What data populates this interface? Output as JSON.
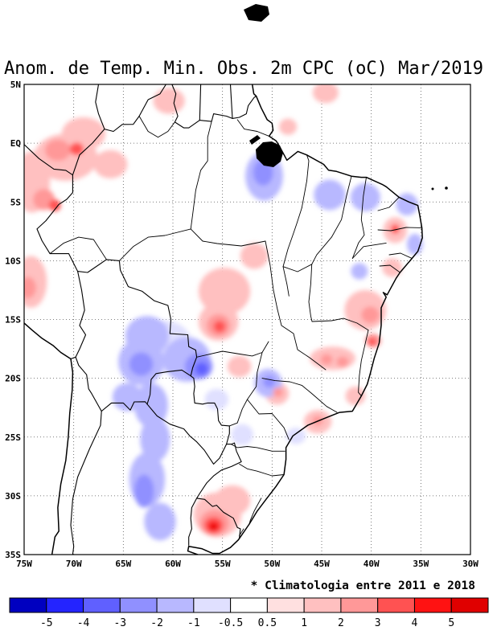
{
  "title": "Anom. de Temp. Min. Obs. 2m CPC (oC) Mar/2019",
  "note": "* Climatologia entre 2011 e 2018",
  "axes": {
    "lat_ticks": [
      {
        "deg": 5,
        "label": "5N"
      },
      {
        "deg": 0,
        "label": "EQ"
      },
      {
        "deg": -5,
        "label": "5S"
      },
      {
        "deg": -10,
        "label": "10S"
      },
      {
        "deg": -15,
        "label": "15S"
      },
      {
        "deg": -20,
        "label": "20S"
      },
      {
        "deg": -25,
        "label": "25S"
      },
      {
        "deg": -30,
        "label": "30S"
      },
      {
        "deg": -35,
        "label": "35S"
      }
    ],
    "lon_ticks": [
      {
        "deg": -75,
        "label": "75W"
      },
      {
        "deg": -70,
        "label": "70W"
      },
      {
        "deg": -65,
        "label": "65W"
      },
      {
        "deg": -60,
        "label": "60W"
      },
      {
        "deg": -55,
        "label": "55W"
      },
      {
        "deg": -50,
        "label": "50W"
      },
      {
        "deg": -45,
        "label": "45W"
      },
      {
        "deg": -40,
        "label": "40W"
      },
      {
        "deg": -35,
        "label": "35W"
      },
      {
        "deg": -30,
        "label": "30W"
      }
    ]
  },
  "colorbar": {
    "tick_labels": [
      "-5",
      "-4",
      "-3",
      "-2",
      "-1",
      "-0.5",
      "0.5",
      "1",
      "2",
      "3",
      "4",
      "5"
    ],
    "colors": [
      "#0000c0",
      "#2424ff",
      "#6060ff",
      "#9090ff",
      "#b8b8ff",
      "#e0e0ff",
      "#ffffff",
      "#ffe0e0",
      "#ffc0c0",
      "#ff9898",
      "#ff5252",
      "#ff1212",
      "#e00000"
    ]
  },
  "chart_data": {
    "type": "heatmap",
    "subtype": "filled-contour-map",
    "title": "Anom. de Temp. Min. Obs. 2m CPC (oC) Mar/2019",
    "units": "oC",
    "lon_range": [
      -75,
      -30
    ],
    "lat_range": [
      -35,
      5
    ],
    "levels": [
      -5,
      -4,
      -3,
      -2,
      -1,
      -0.5,
      0.5,
      1,
      2,
      3,
      4,
      5
    ],
    "anomaly_columns": [
      "lon",
      "lat",
      "rx_deg",
      "ry_deg",
      "anomaly_c"
    ],
    "anomalies": [
      [
        -70.8,
        -1.2,
        3.2,
        2.0,
        1.5
      ],
      [
        -69.0,
        0.8,
        2.2,
        1.4,
        1.5
      ],
      [
        -71.6,
        -0.6,
        1.3,
        0.9,
        2.5
      ],
      [
        -69.7,
        -0.5,
        0.7,
        0.55,
        3.5
      ],
      [
        -66.3,
        -1.8,
        1.7,
        1.2,
        1.5
      ],
      [
        -60.4,
        3.6,
        1.6,
        1.1,
        1.5
      ],
      [
        -44.6,
        4.3,
        1.3,
        0.9,
        1.5
      ],
      [
        -48.4,
        1.4,
        0.9,
        0.7,
        1.5
      ],
      [
        -74.2,
        -3.3,
        1.8,
        2.6,
        1.5
      ],
      [
        -73.0,
        -4.8,
        1.1,
        0.9,
        2.5
      ],
      [
        -71.9,
        -5.3,
        0.6,
        0.5,
        3.5
      ],
      [
        -74.3,
        -11.8,
        1.6,
        2.2,
        1.5
      ],
      [
        -74.6,
        -12.3,
        0.8,
        0.9,
        2.5
      ],
      [
        -51.8,
        -9.6,
        1.4,
        1.1,
        1.5
      ],
      [
        -54.8,
        -12.6,
        2.6,
        2.0,
        1.5
      ],
      [
        -55.4,
        -15.2,
        2.0,
        1.6,
        1.5
      ],
      [
        -55.4,
        -15.5,
        1.2,
        0.95,
        2.5
      ],
      [
        -55.3,
        -15.6,
        0.6,
        0.5,
        3.5
      ],
      [
        -53.3,
        -19.0,
        1.2,
        0.9,
        1.5
      ],
      [
        -49.5,
        -21.3,
        1.2,
        0.95,
        1.5
      ],
      [
        -49.4,
        -21.2,
        0.5,
        0.4,
        2.5
      ],
      [
        -45.4,
        -23.7,
        1.4,
        1.0,
        1.5
      ],
      [
        -45.4,
        -23.6,
        0.55,
        0.4,
        2.5
      ],
      [
        -41.6,
        -21.5,
        1.0,
        0.8,
        1.5
      ],
      [
        -40.6,
        -14.2,
        2.1,
        1.7,
        1.5
      ],
      [
        -40.1,
        -14.6,
        0.9,
        0.7,
        2.5
      ],
      [
        -39.8,
        -16.8,
        0.8,
        0.6,
        2.5
      ],
      [
        -39.9,
        -16.9,
        0.4,
        0.35,
        3.5
      ],
      [
        -43.9,
        -18.3,
        2.3,
        1.0,
        1.5
      ],
      [
        -44.5,
        -18.4,
        0.6,
        0.45,
        2.5
      ],
      [
        -42.9,
        -18.6,
        0.6,
        0.45,
        2.5
      ],
      [
        -37.6,
        -7.4,
        1.2,
        1.1,
        1.5
      ],
      [
        -37.6,
        -7.3,
        0.45,
        0.4,
        3.5
      ],
      [
        -37.9,
        -10.6,
        1.0,
        0.8,
        1.5
      ],
      [
        -55.5,
        -31.6,
        2.4,
        1.9,
        1.5
      ],
      [
        -54.0,
        -30.4,
        1.8,
        1.3,
        1.5
      ],
      [
        -55.8,
        -32.3,
        1.5,
        1.1,
        2.5
      ],
      [
        -55.9,
        -32.5,
        0.95,
        0.7,
        3.5
      ],
      [
        -55.9,
        -32.6,
        0.55,
        0.42,
        4.5
      ],
      [
        -55.9,
        -32.65,
        0.3,
        0.22,
        5.5
      ],
      [
        -50.8,
        -2.8,
        1.9,
        2.1,
        -1.5
      ],
      [
        -50.9,
        -2.5,
        1.0,
        1.1,
        -2.5
      ],
      [
        -44.2,
        -4.4,
        1.6,
        1.3,
        -1.5
      ],
      [
        -40.6,
        -4.6,
        1.5,
        1.2,
        -1.5
      ],
      [
        -36.4,
        -5.2,
        1.1,
        0.95,
        -1.5
      ],
      [
        -35.6,
        -8.6,
        0.8,
        0.9,
        -1.5
      ],
      [
        -41.2,
        -10.9,
        0.85,
        0.7,
        -1.5
      ],
      [
        -60.8,
        -17.3,
        2.8,
        2.2,
        -0.75
      ],
      [
        -62.6,
        -16.4,
        2.2,
        1.7,
        -1.5
      ],
      [
        -63.2,
        -18.6,
        2.3,
        2.0,
        -1.5
      ],
      [
        -63.2,
        -18.8,
        1.2,
        1.0,
        -2.5
      ],
      [
        -58.6,
        -18.4,
        2.4,
        1.9,
        -1.5
      ],
      [
        -57.4,
        -19.0,
        1.4,
        1.1,
        -2.5
      ],
      [
        -57.1,
        -19.2,
        0.65,
        0.55,
        -3.5
      ],
      [
        -64.6,
        -21.6,
        1.5,
        1.2,
        -1.5
      ],
      [
        -62.2,
        -22.3,
        1.7,
        1.9,
        -1.5
      ],
      [
        -61.8,
        -25.2,
        1.5,
        1.9,
        -1.5
      ],
      [
        -62.6,
        -28.6,
        1.8,
        2.3,
        -1.5
      ],
      [
        -62.9,
        -29.6,
        1.0,
        1.4,
        -2.5
      ],
      [
        -61.3,
        -32.2,
        1.6,
        1.6,
        -1.5
      ],
      [
        -50.4,
        -20.4,
        1.4,
        1.2,
        -1.5
      ],
      [
        -50.3,
        -20.3,
        0.6,
        0.5,
        -2.5
      ],
      [
        -55.6,
        -21.8,
        1.2,
        0.9,
        -0.75
      ],
      [
        -47.6,
        -24.9,
        1.0,
        0.7,
        -0.75
      ],
      [
        -53.0,
        -24.8,
        1.1,
        0.9,
        -0.75
      ]
    ]
  }
}
